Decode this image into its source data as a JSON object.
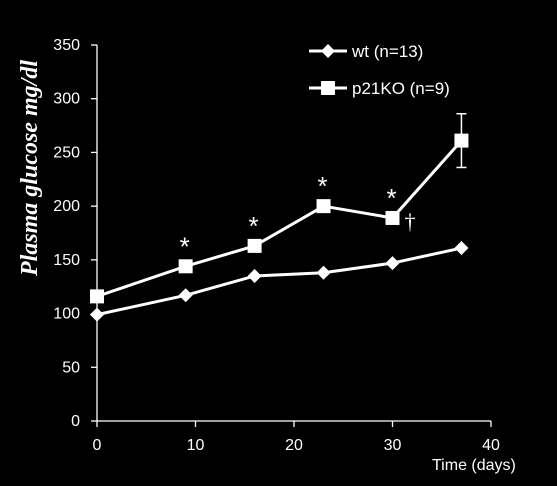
{
  "chart_data": {
    "type": "line",
    "title": "",
    "xlabel": "Time (days)",
    "ylabel": "Plasma glucose mg/dl",
    "xlim": [
      0,
      40
    ],
    "ylim": [
      0,
      350
    ],
    "xticks": [
      0,
      10,
      20,
      30,
      40
    ],
    "yticks": [
      0,
      50,
      100,
      150,
      200,
      250,
      300,
      350
    ],
    "grid": false,
    "legend_position": "top-right",
    "series": [
      {
        "name": "wt (n=13)",
        "marker": "diamond",
        "x": [
          0,
          9,
          16,
          23,
          30,
          37
        ],
        "y": [
          99,
          117,
          135,
          138,
          147,
          161
        ]
      },
      {
        "name": "p21KO (n=9)",
        "marker": "square",
        "x": [
          0,
          9,
          16,
          23,
          30,
          37
        ],
        "y": [
          116,
          144,
          163,
          200,
          189,
          261
        ],
        "error": [
          null,
          null,
          null,
          null,
          null,
          25
        ]
      }
    ],
    "annotations": [
      {
        "text": "*",
        "x": 9,
        "y": 144
      },
      {
        "text": "*",
        "x": 16,
        "y": 163
      },
      {
        "text": "*",
        "x": 23,
        "y": 200
      },
      {
        "text": "*",
        "x": 30,
        "y": 189
      },
      {
        "text": "†",
        "x": 30,
        "y": 189
      }
    ],
    "colors": {
      "background": "#000000",
      "foreground": "#ffffff"
    }
  }
}
